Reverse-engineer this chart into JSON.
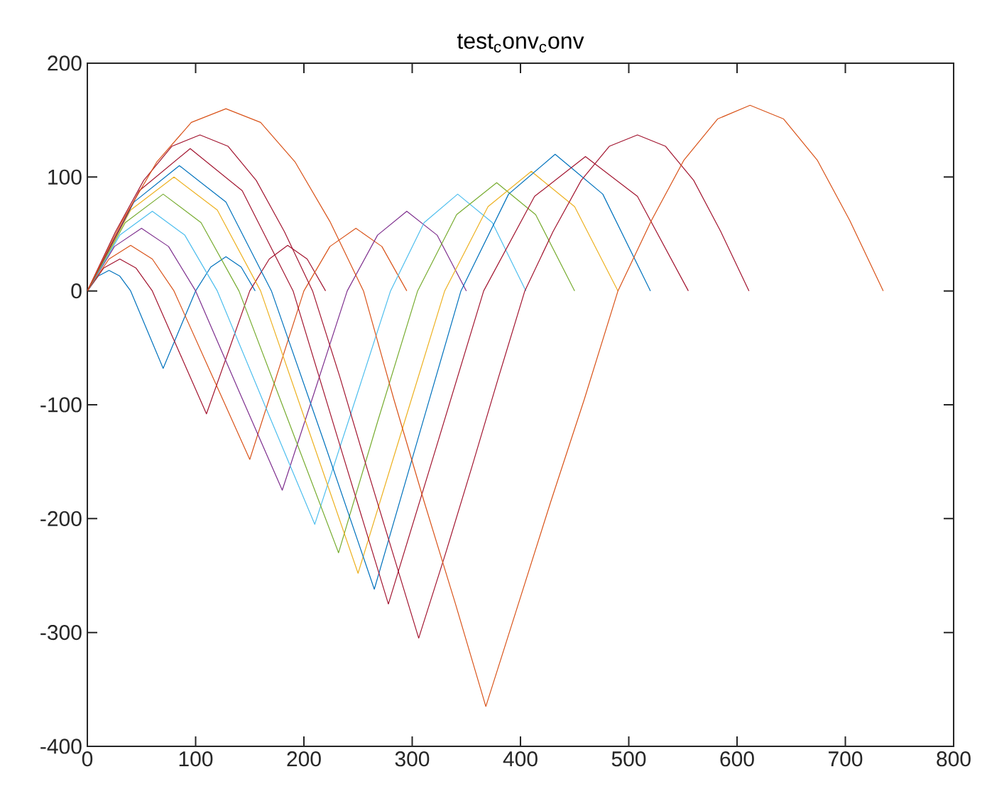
{
  "chart_data": {
    "type": "line",
    "title": "test$_{c}$onv$_{c}$onv",
    "xlim": [
      0,
      800
    ],
    "xticks": [
      0,
      100,
      200,
      300,
      400,
      500,
      600,
      700,
      800
    ],
    "ylim": [
      -400,
      200
    ],
    "yticks": [
      -400,
      -300,
      -200,
      -100,
      0,
      100,
      200
    ],
    "series": [
      {
        "color": "#0072bd",
        "x": [
          0,
          10,
          20,
          30,
          40,
          55,
          70,
          85,
          100,
          114,
          128,
          142,
          155
        ],
        "values": [
          0,
          13,
          18,
          13,
          0,
          -34,
          -68,
          -34,
          0,
          21,
          30,
          21,
          0
        ]
      },
      {
        "color": "#a2142f",
        "x": [
          0,
          15,
          30,
          45,
          60,
          85,
          110,
          130,
          150,
          168,
          185,
          203,
          220
        ],
        "values": [
          0,
          20,
          28,
          20,
          0,
          -54,
          -108,
          -54,
          0,
          28,
          40,
          28,
          0
        ]
      },
      {
        "color": "#d95319",
        "x": [
          0,
          20,
          40,
          60,
          80,
          115,
          150,
          175,
          200,
          224,
          248,
          272,
          295
        ],
        "values": [
          0,
          28,
          40,
          28,
          0,
          -74,
          -148,
          -74,
          0,
          39,
          55,
          39,
          0
        ]
      },
      {
        "color": "#7e2f8e",
        "x": [
          0,
          25,
          50,
          75,
          100,
          140,
          180,
          210,
          240,
          268,
          295,
          323,
          350
        ],
        "values": [
          0,
          39,
          55,
          39,
          0,
          -88,
          -175,
          -88,
          0,
          49,
          70,
          49,
          0
        ]
      },
      {
        "color": "#4dbeee",
        "x": [
          0,
          30,
          60,
          90,
          120,
          165,
          210,
          245,
          280,
          311,
          342,
          374,
          405
        ],
        "values": [
          0,
          49,
          70,
          49,
          0,
          -103,
          -205,
          -103,
          0,
          60,
          85,
          60,
          0
        ]
      },
      {
        "color": "#77ac30",
        "x": [
          0,
          35,
          70,
          105,
          140,
          186,
          232,
          268,
          305,
          341,
          378,
          414,
          450
        ],
        "values": [
          0,
          60,
          85,
          60,
          0,
          -115,
          -230,
          -115,
          0,
          67,
          95,
          67,
          0
        ]
      },
      {
        "color": "#edb120",
        "x": [
          0,
          40,
          80,
          120,
          160,
          205,
          250,
          290,
          330,
          370,
          410,
          450,
          490
        ],
        "values": [
          0,
          71,
          100,
          71,
          0,
          -124,
          -248,
          -124,
          0,
          74,
          105,
          74,
          0
        ]
      },
      {
        "color": "#0072bd",
        "x": [
          0,
          43,
          85,
          128,
          170,
          218,
          265,
          305,
          345,
          389,
          432,
          476,
          520
        ],
        "values": [
          0,
          78,
          110,
          78,
          0,
          -131,
          -262,
          -131,
          0,
          85,
          120,
          85,
          0
        ]
      },
      {
        "color": "#a2142f",
        "x": [
          0,
          48,
          95,
          143,
          190,
          234,
          278,
          322,
          366,
          413,
          460,
          508,
          555
        ],
        "values": [
          0,
          88,
          125,
          88,
          0,
          -138,
          -275,
          -138,
          0,
          83,
          118,
          83,
          0
        ]
      },
      {
        "color": "#a2142f",
        "x": [
          0,
          26,
          52,
          78,
          104,
          130,
          156,
          182,
          208,
          233,
          258,
          282,
          306,
          331,
          355,
          380,
          404,
          430,
          456,
          482,
          508,
          534,
          560,
          585,
          611
        ],
        "values": [
          0,
          52,
          97,
          127,
          137,
          127,
          97,
          52,
          0,
          -75,
          -155,
          -230,
          -305,
          -230,
          -155,
          -75,
          0,
          52,
          97,
          127,
          137,
          127,
          97,
          52,
          0
        ]
      },
      {
        "color": "#d95319",
        "x": [
          0,
          32,
          64,
          96,
          128,
          160,
          192,
          224,
          255,
          283,
          311,
          340,
          368,
          398,
          428,
          459,
          490,
          521,
          551,
          582,
          612,
          643,
          674,
          704,
          735
        ],
        "values": [
          0,
          61,
          113,
          148,
          160,
          148,
          113,
          61,
          0,
          -95,
          -185,
          -275,
          -365,
          -275,
          -185,
          -95,
          0,
          62,
          115,
          151,
          163,
          151,
          115,
          62,
          0
        ]
      }
    ]
  }
}
